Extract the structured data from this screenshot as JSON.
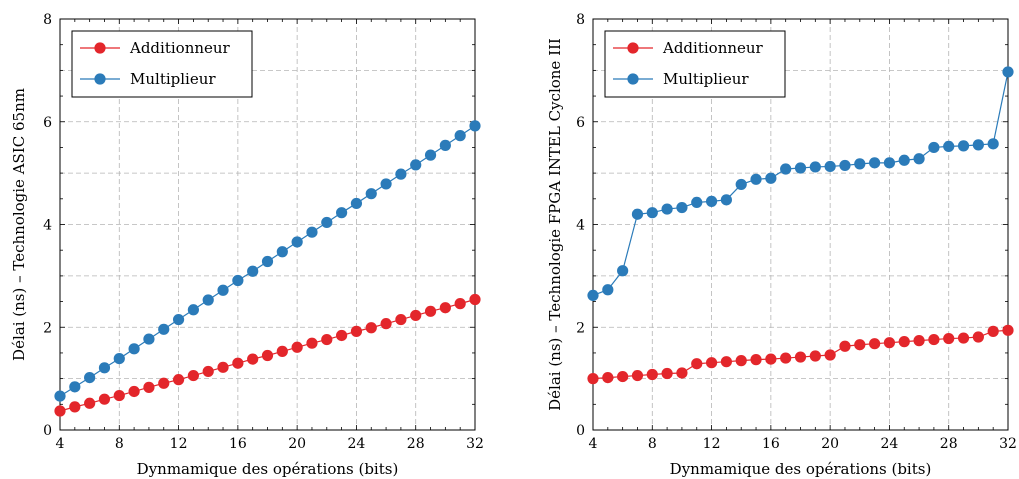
{
  "chart_data": [
    {
      "type": "line",
      "xlabel": "Dynmamique des opérations (bits)",
      "ylabel": "Délai (ns) – Technologie ASIC 65nm",
      "xlim": [
        4,
        32
      ],
      "ylim": [
        0,
        8
      ],
      "xticks": [
        "4",
        "8",
        "12",
        "16",
        "20",
        "24",
        "28",
        "32"
      ],
      "yticks": [
        "0",
        "2",
        "4",
        "6",
        "8"
      ],
      "grid": true,
      "legend_position": "top-left",
      "x": [
        4,
        5,
        6,
        7,
        8,
        9,
        10,
        11,
        12,
        13,
        14,
        15,
        16,
        17,
        18,
        19,
        20,
        21,
        22,
        23,
        24,
        25,
        26,
        27,
        28,
        29,
        30,
        31,
        32
      ],
      "series": [
        {
          "name": "Additionneur",
          "color": "#e3262b",
          "values": [
            0.37,
            0.45,
            0.52,
            0.6,
            0.67,
            0.75,
            0.83,
            0.91,
            0.98,
            1.06,
            1.14,
            1.22,
            1.3,
            1.38,
            1.45,
            1.53,
            1.61,
            1.69,
            1.76,
            1.84,
            1.92,
            1.99,
            2.07,
            2.15,
            2.23,
            2.31,
            2.38,
            2.46,
            2.54
          ]
        },
        {
          "name": "Multiplieur",
          "color": "#2b7bb9",
          "values": [
            0.66,
            0.84,
            1.02,
            1.21,
            1.39,
            1.58,
            1.77,
            1.96,
            2.15,
            2.34,
            2.53,
            2.72,
            2.91,
            3.09,
            3.28,
            3.47,
            3.66,
            3.85,
            4.04,
            4.23,
            4.41,
            4.6,
            4.79,
            4.98,
            5.16,
            5.35,
            5.54,
            5.73,
            5.92
          ]
        }
      ]
    },
    {
      "type": "line",
      "xlabel": "Dynmamique des opérations (bits)",
      "ylabel": "Délai (ns) – Technologie FPGA INTEL Cyclone III",
      "xlim": [
        4,
        32
      ],
      "ylim": [
        0,
        8
      ],
      "xticks": [
        "4",
        "8",
        "12",
        "16",
        "20",
        "24",
        "28",
        "32"
      ],
      "yticks": [
        "0",
        "2",
        "4",
        "6",
        "8"
      ],
      "grid": true,
      "legend_position": "top-left",
      "x": [
        4,
        5,
        6,
        7,
        8,
        9,
        10,
        11,
        12,
        13,
        14,
        15,
        16,
        17,
        18,
        19,
        20,
        21,
        22,
        23,
        24,
        25,
        26,
        27,
        28,
        29,
        30,
        31,
        32
      ],
      "series": [
        {
          "name": "Additionneur",
          "color": "#e3262b",
          "values": [
            1.0,
            1.02,
            1.04,
            1.06,
            1.08,
            1.1,
            1.11,
            1.29,
            1.31,
            1.33,
            1.35,
            1.37,
            1.38,
            1.4,
            1.42,
            1.44,
            1.46,
            1.63,
            1.66,
            1.68,
            1.7,
            1.72,
            1.74,
            1.76,
            1.78,
            1.79,
            1.81,
            1.92,
            1.94
          ]
        },
        {
          "name": "Multiplieur",
          "color": "#2b7bb9",
          "values": [
            2.62,
            2.73,
            3.1,
            4.2,
            4.23,
            4.3,
            4.33,
            4.43,
            4.45,
            4.48,
            4.78,
            4.88,
            4.9,
            5.08,
            5.1,
            5.12,
            5.13,
            5.15,
            5.18,
            5.2,
            5.2,
            5.25,
            5.28,
            5.5,
            5.52,
            5.53,
            5.55,
            5.57,
            6.97
          ]
        }
      ]
    }
  ]
}
